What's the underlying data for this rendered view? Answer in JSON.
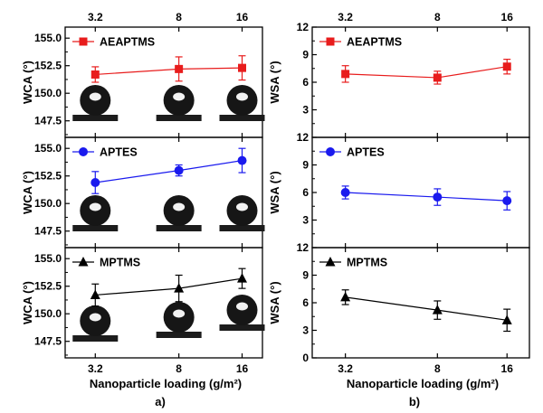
{
  "chart_data": [
    {
      "id": "a",
      "type": "line",
      "panel_label": "a)",
      "xlabel": "Nanoparticle loading (g/m²)",
      "x_ticks": [
        "3.2",
        "8",
        "16"
      ],
      "x_top_ticks": [
        "3.2",
        "8",
        "16"
      ],
      "x_log": true,
      "xlim": [
        2.3,
        20
      ],
      "subplots": [
        {
          "ylabel": "WCA (°)",
          "ylim": [
            146,
            156
          ],
          "yticks": [
            "147.5",
            "150.0",
            "152.5",
            "155.0"
          ],
          "legend_position": "top-left",
          "series": [
            {
              "name": "AEAPTMS",
              "color": "#e81c1c",
              "marker": "square",
              "x": [
                3.2,
                8,
                16
              ],
              "y": [
                151.7,
                152.2,
                152.3
              ],
              "err": [
                0.7,
                1.1,
                1.1
              ]
            }
          ],
          "droplets": [
            3.2,
            8,
            16
          ]
        },
        {
          "ylabel": "WCA (°)",
          "ylim": [
            146,
            156
          ],
          "yticks": [
            "147.5",
            "150.0",
            "152.5",
            "155.0"
          ],
          "legend_position": "top-left",
          "series": [
            {
              "name": "APTES",
              "color": "#1a1aee",
              "marker": "circle",
              "x": [
                3.2,
                8,
                16
              ],
              "y": [
                151.9,
                153.0,
                153.9
              ],
              "err": [
                1.0,
                0.5,
                1.1
              ]
            }
          ],
          "droplets": [
            3.2,
            8,
            16
          ]
        },
        {
          "ylabel": "WCA (°)",
          "ylim": [
            146,
            156
          ],
          "yticks": [
            "147.5",
            "150.0",
            "152.5",
            "155.0"
          ],
          "legend_position": "top-left",
          "series": [
            {
              "name": "MPTMS",
              "color": "#000000",
              "marker": "triangle",
              "x": [
                3.2,
                8,
                16
              ],
              "y": [
                151.7,
                152.3,
                153.2
              ],
              "err": [
                1.0,
                1.2,
                0.9
              ]
            }
          ],
          "droplets": [
            3.2,
            8,
            16
          ]
        }
      ]
    },
    {
      "id": "b",
      "type": "line",
      "panel_label": "b)",
      "xlabel": "Nanoparticle loading (g/m²)",
      "x_ticks": [
        "3.2",
        "8",
        "16"
      ],
      "x_top_ticks": [
        "3.2",
        "8",
        "16"
      ],
      "x_log": true,
      "xlim": [
        2.3,
        20
      ],
      "subplots": [
        {
          "ylabel": "WSA (°)",
          "ylim": [
            0,
            12
          ],
          "yticks": [
            "3",
            "6",
            "9",
            "12"
          ],
          "legend_position": "top-left",
          "series": [
            {
              "name": "AEAPTMS",
              "color": "#e81c1c",
              "marker": "square",
              "x": [
                3.2,
                8,
                16
              ],
              "y": [
                6.9,
                6.5,
                7.7
              ],
              "err": [
                0.9,
                0.7,
                0.8
              ]
            }
          ]
        },
        {
          "ylabel": "WSA (°)",
          "ylim": [
            0,
            12
          ],
          "yticks": [
            "3",
            "6",
            "9",
            "12"
          ],
          "legend_position": "top-left",
          "series": [
            {
              "name": "APTES",
              "color": "#1a1aee",
              "marker": "circle",
              "x": [
                3.2,
                8,
                16
              ],
              "y": [
                6.0,
                5.5,
                5.1
              ],
              "err": [
                0.7,
                0.9,
                1.0
              ]
            }
          ]
        },
        {
          "ylabel": "WSA (°)",
          "ylim": [
            0,
            12
          ],
          "yticks": [
            "0",
            "3",
            "6",
            "9",
            "12"
          ],
          "legend_position": "top-left",
          "series": [
            {
              "name": "MPTMS",
              "color": "#000000",
              "marker": "triangle",
              "x": [
                3.2,
                8,
                16
              ],
              "y": [
                6.6,
                5.2,
                4.1
              ],
              "err": [
                0.8,
                1.0,
                1.2
              ]
            }
          ]
        }
      ]
    }
  ]
}
